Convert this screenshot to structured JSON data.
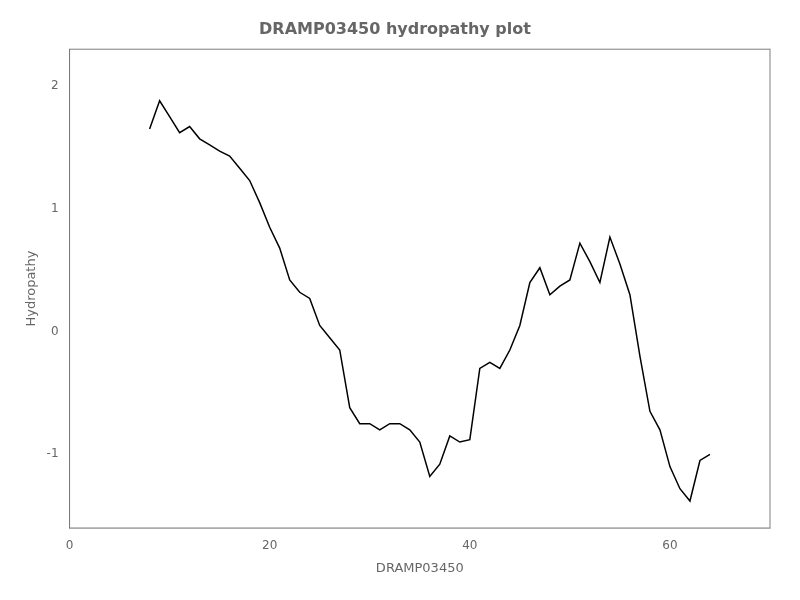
{
  "chart_data": {
    "type": "line",
    "title": "DRAMP03450 hydropathy plot",
    "xlabel": "DRAMP03450",
    "ylabel": "Hydropathy",
    "xlim": [
      0,
      70
    ],
    "ylim": [
      -1.6,
      2.3
    ],
    "xticks": [
      0,
      20,
      40,
      60
    ],
    "yticks": [
      -1,
      0,
      1,
      2
    ],
    "color": "#000000",
    "grid": false,
    "x": [
      8,
      9,
      10,
      11,
      12,
      13,
      14,
      15,
      16,
      17,
      18,
      19,
      20,
      21,
      22,
      23,
      24,
      25,
      26,
      27,
      28,
      29,
      30,
      31,
      32,
      33,
      34,
      35,
      36,
      37,
      38,
      39,
      40,
      41,
      42,
      43,
      44,
      45,
      46,
      47,
      48,
      49,
      50,
      51,
      52,
      53,
      54,
      55,
      56,
      57,
      58,
      59,
      60,
      61,
      62,
      63,
      64
    ],
    "values": [
      1.65,
      1.88,
      1.75,
      1.62,
      1.67,
      1.57,
      1.52,
      1.47,
      1.43,
      1.33,
      1.23,
      1.05,
      0.85,
      0.68,
      0.42,
      0.32,
      0.27,
      0.05,
      -0.05,
      -0.15,
      -0.62,
      -0.75,
      -0.75,
      -0.8,
      -0.75,
      -0.75,
      -0.8,
      -0.9,
      -1.18,
      -1.08,
      -0.85,
      -0.9,
      -0.88,
      -0.3,
      -0.25,
      -0.3,
      -0.15,
      0.05,
      0.4,
      0.52,
      0.3,
      0.37,
      0.42,
      0.72,
      0.57,
      0.4,
      0.77,
      0.55,
      0.3,
      -0.2,
      -0.65,
      -0.8,
      -1.1,
      -1.28,
      -1.38,
      -1.05,
      -1.0
    ]
  }
}
